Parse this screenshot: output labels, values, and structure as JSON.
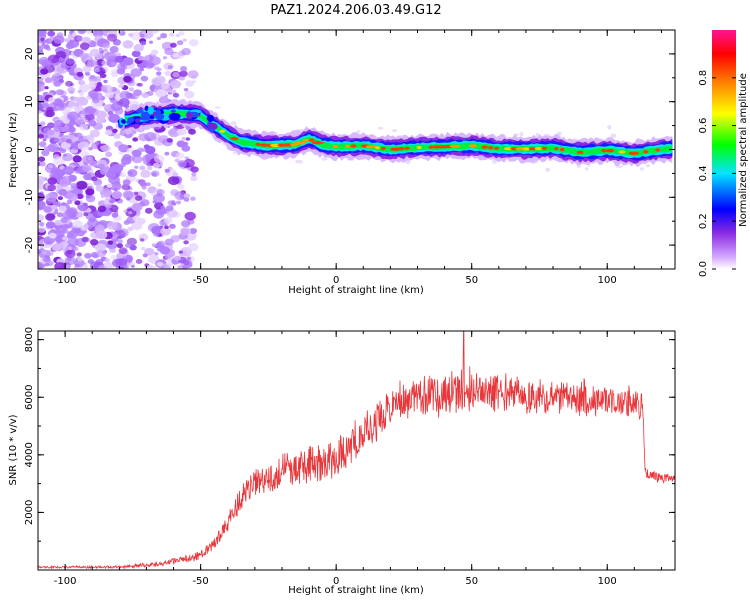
{
  "title": "PAZ1.2024.206.03.49.G12",
  "chart_data": [
    {
      "type": "heatmap",
      "xlabel": "Height of straight line (km)",
      "ylabel": "Frequency (Hz)",
      "xlim": [
        -110,
        125
      ],
      "ylim": [
        -25,
        25
      ],
      "xticks": [
        "-100",
        "-50",
        "0",
        "50",
        "100"
      ],
      "yticks": [
        "-20",
        "-10",
        "0",
        "10",
        "20"
      ],
      "colorbar": {
        "label": "Normalized spectral amplitude",
        "ticks": [
          "0.0",
          "0.2",
          "0.4",
          "0.6",
          "0.8"
        ],
        "range": [
          0,
          1
        ],
        "colormap": [
          "#ffffff",
          "#d4a8ff",
          "#8a2be2",
          "#0000ff",
          "#00e5ff",
          "#00ff00",
          "#ffff00",
          "#ff8000",
          "#ff0000",
          "#ff1493"
        ]
      },
      "ridge": {
        "x": [
          -78,
          -70,
          -60,
          -55,
          -50,
          -45,
          -40,
          -35,
          -25,
          -15,
          -10,
          -5,
          0,
          10,
          20,
          30,
          40,
          50,
          60,
          70,
          80,
          90,
          100,
          110,
          120,
          124
        ],
        "y": [
          6,
          7,
          7.5,
          7.5,
          7,
          5,
          3,
          1.5,
          0.8,
          1,
          2.2,
          1,
          0.6,
          0.8,
          0,
          0.4,
          0.6,
          0.8,
          0.2,
          0.1,
          0.3,
          -0.6,
          -0.2,
          -0.8,
          0,
          0.2
        ]
      }
    },
    {
      "type": "line",
      "xlabel": "Height of straight line (km)",
      "ylabel": "SNR (10 * v/v)",
      "xlim": [
        -110,
        125
      ],
      "ylim": [
        0,
        8300
      ],
      "xticks": [
        "-100",
        "-50",
        "0",
        "50",
        "100"
      ],
      "yticks": [
        "2000",
        "4000",
        "6000",
        "8000"
      ],
      "series": [
        {
          "color": "#e8363a",
          "x": [
            -110,
            -80,
            -65,
            -50,
            -45,
            -40,
            -35,
            -30,
            -20,
            -10,
            -5,
            0,
            10,
            20,
            25,
            30,
            40,
            47,
            50,
            60,
            70,
            80,
            90,
            100,
            105,
            110,
            113,
            114,
            115,
            120,
            125
          ],
          "y": [
            100,
            100,
            200,
            500,
            900,
            1700,
            2500,
            3000,
            3400,
            3700,
            3700,
            3900,
            4700,
            5600,
            5900,
            6000,
            6100,
            6300,
            6200,
            6150,
            6100,
            6000,
            5950,
            5900,
            5850,
            5800,
            5700,
            3500,
            3300,
            3200,
            3200
          ],
          "noise": [
            30,
            40,
            80,
            150,
            200,
            350,
            450,
            500,
            550,
            600,
            600,
            600,
            600,
            600,
            650,
            650,
            700,
            700,
            700,
            600,
            550,
            550,
            550,
            500,
            500,
            500,
            500,
            200,
            150,
            150,
            150
          ],
          "spike": {
            "x": 47,
            "y": 8300
          }
        }
      ]
    }
  ]
}
